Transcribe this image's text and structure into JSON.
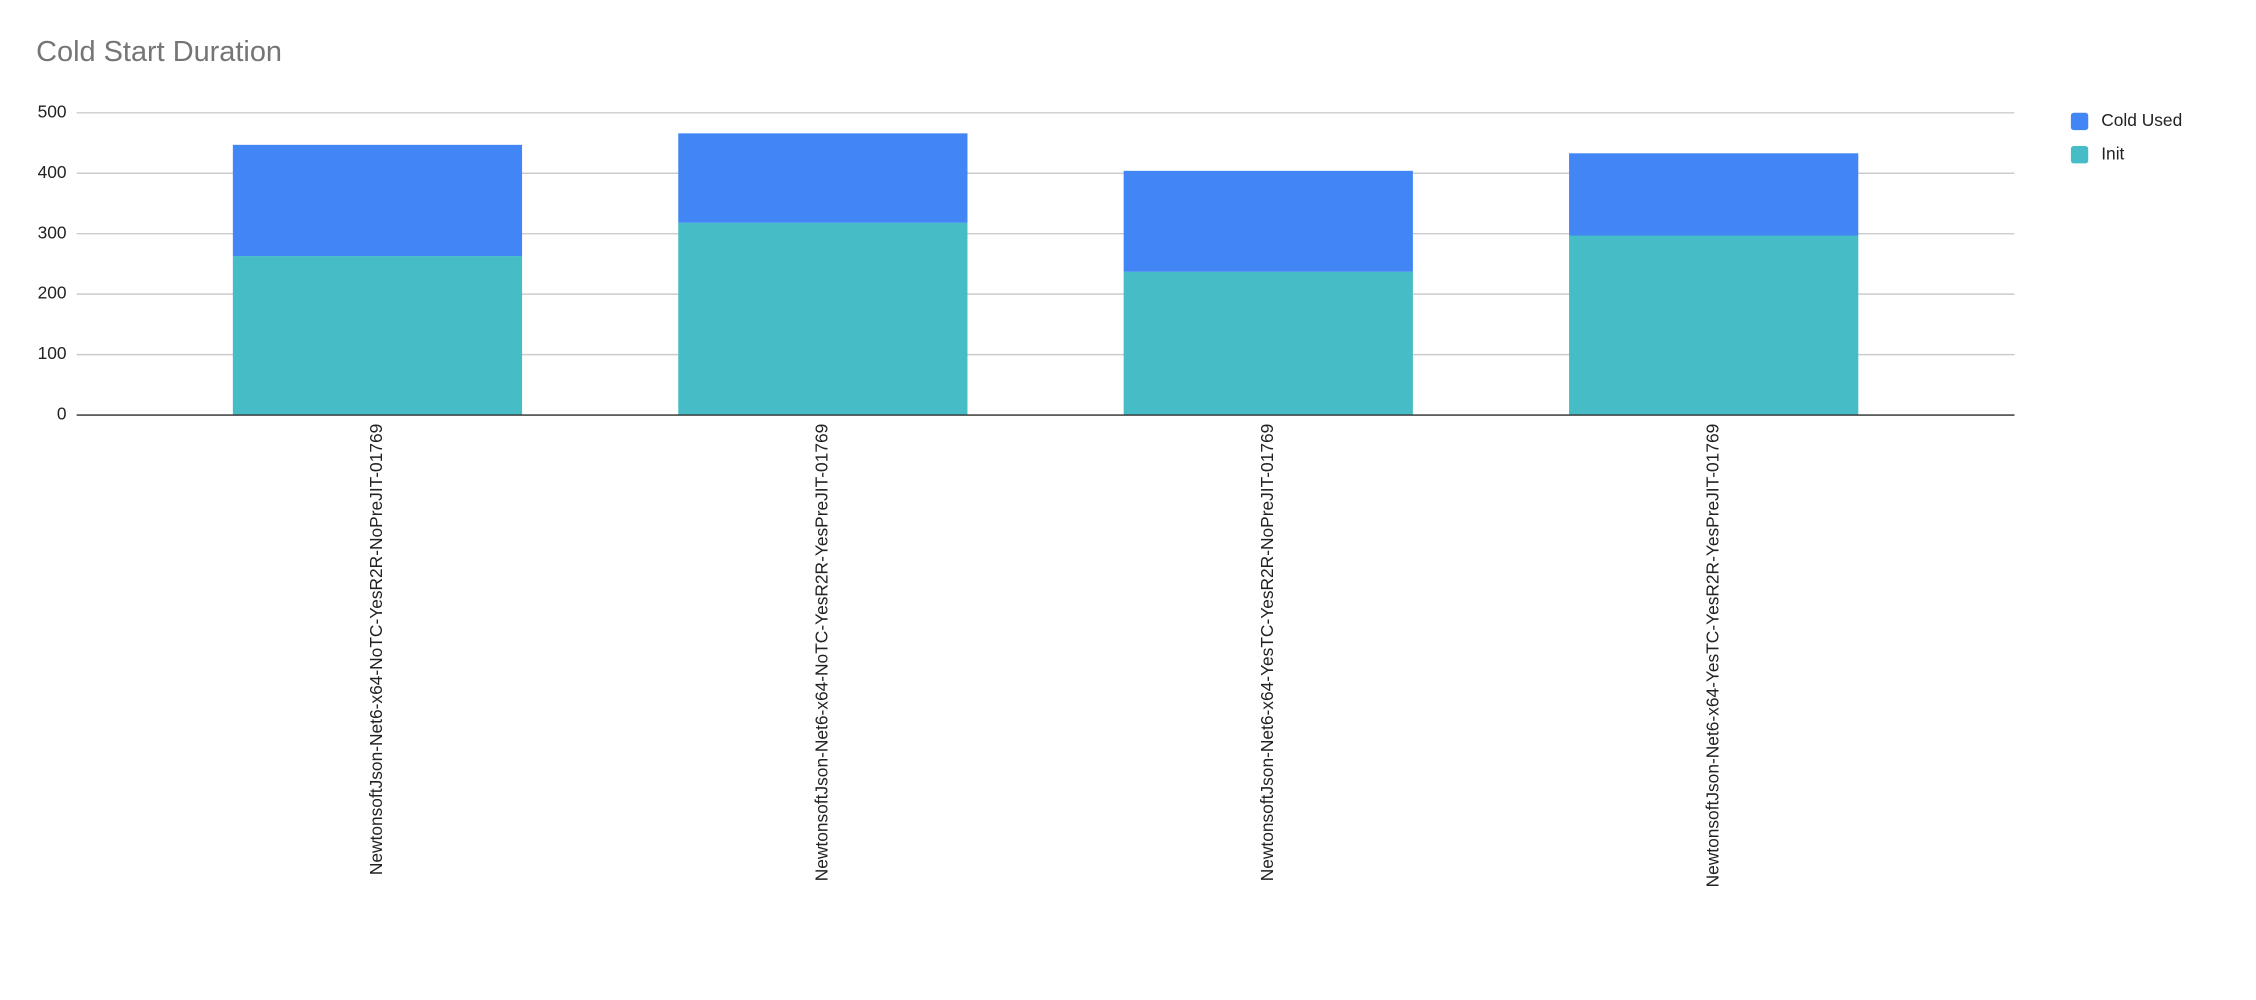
{
  "chart_data": {
    "type": "stacked_bar",
    "title": "Cold Start Duration",
    "categories": [
      "NewtonsoftJson-Net6-x64-NoTC-YesR2R-NoPreJIT-01769",
      "NewtonsoftJson-Net6-x64-NoTC-YesR2R-YesPreJIT-01769",
      "NewtonsoftJson-Net6-x64-YesTC-YesR2R-NoPreJIT-01769",
      "NewtonsoftJson-Net6-x64-YesTC-YesR2R-YesPreJIT-01769"
    ],
    "series": [
      {
        "name": "Cold Used",
        "color": "#4285f4",
        "values": [
          184,
          148,
          167,
          136
        ]
      },
      {
        "name": "Init",
        "color": "#46bdc6",
        "values": [
          263,
          318,
          237,
          297
        ]
      }
    ],
    "ylim": [
      0,
      500
    ],
    "yticks": [
      0,
      100,
      200,
      300,
      400,
      500
    ],
    "grid": true,
    "legend": "right"
  }
}
